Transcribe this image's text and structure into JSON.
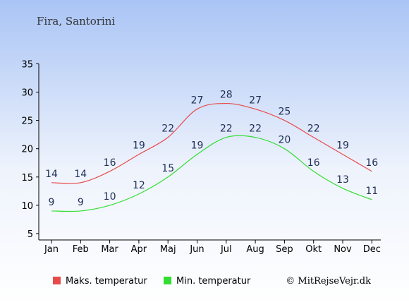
{
  "chart_data": {
    "type": "line",
    "title": "Fira, Santorini",
    "categories": [
      "Jan",
      "Feb",
      "Mar",
      "Apr",
      "Maj",
      "Jun",
      "Jul",
      "Aug",
      "Sep",
      "Okt",
      "Nov",
      "Dec"
    ],
    "ylim": [
      5,
      35
    ],
    "yticks": [
      5,
      10,
      15,
      20,
      25,
      30,
      35
    ],
    "grid": false,
    "legend_position": "bottom",
    "series": [
      {
        "name": "Maks. temperatur",
        "color": "#e84a4a",
        "values": [
          14,
          14,
          16,
          19,
          22,
          27,
          28,
          27,
          25,
          22,
          19,
          16
        ]
      },
      {
        "name": "Min. temperatur",
        "color": "#33dd33",
        "values": [
          9,
          9,
          10,
          12,
          15,
          19,
          22,
          22,
          20,
          16,
          13,
          11
        ]
      }
    ]
  },
  "credit": "© MitRejseVejr.dk",
  "colors": {
    "background_top": "#a9c4f5",
    "background_bottom": "#ffffff",
    "label": "#1f2f57"
  }
}
